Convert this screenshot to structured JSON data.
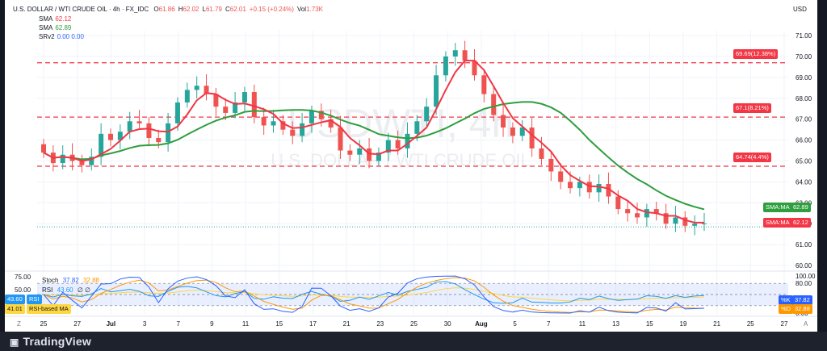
{
  "header": {
    "symbol_line": "U.S. DOLLAR / WTI CRUDE OIL · 4h · FX_IDC",
    "ohlc": [
      {
        "k": "O",
        "v": "61.86",
        "c": "#ef5350"
      },
      {
        "k": "H",
        "v": "62.02",
        "c": "#ef5350"
      },
      {
        "k": "L",
        "v": "61.79",
        "c": "#ef5350"
      },
      {
        "k": "C",
        "v": "62.01",
        "c": "#ef5350"
      },
      {
        "k": "",
        "v": "+0.15 (+0.24%)",
        "c": "#ef5350"
      },
      {
        "k": "Vol",
        "v": "1.73K",
        "c": "#ef5350"
      }
    ],
    "currency": "USD"
  },
  "indicators": [
    {
      "name": "SMA",
      "value": "62.12",
      "color": "#f23645"
    },
    {
      "name": "SMA",
      "value": "62.89",
      "color": "#2e9e3e"
    },
    {
      "name": "SRv2",
      "value": "0.00  0.00",
      "color": "#2962ff"
    }
  ],
  "watermark": {
    "ticker": "USDWTI, 4h",
    "name": "U.S. DOLLAR / WTI CRUDE OIL"
  },
  "colors": {
    "up": "#26a69a",
    "down": "#ef5350",
    "fast_ma": "#f23645",
    "slow_ma": "#2e9e3e",
    "level": "#f23645",
    "k": "#2962ff",
    "d": "#ff9800",
    "rsi": "#2196f3",
    "rsi_ma": "#ffd740"
  },
  "price_axis": {
    "ticks": [
      "71.00",
      "70.00",
      "69.00",
      "68.00",
      "67.00",
      "66.00",
      "65.00",
      "64.00",
      "63.00",
      "62.00",
      "61.00",
      "60.00"
    ]
  },
  "levels": [
    {
      "price": 69.7,
      "label": "69.69(12.38%)"
    },
    {
      "price": 67.1,
      "label": "67.1(8.21%)"
    },
    {
      "price": 64.75,
      "label": "64.74(4.4%)"
    }
  ],
  "price_tags": [
    {
      "text": "SMA:MA",
      "value": "62.89",
      "kind": "slow"
    },
    {
      "text": "SMA:MA",
      "value": "62.12",
      "kind": "fast"
    }
  ],
  "osc_legend": {
    "stoch_label": "Stoch",
    "stoch_k": "37.82",
    "stoch_d": "32.88",
    "rsi_label": "RSI",
    "rsi_value": "43.60",
    "rsi_extra": "∅ ∅"
  },
  "osc_axis": {
    "ticks": [
      "100.00",
      "80.00",
      "20.00",
      "0.00"
    ],
    "left_ticks": [
      "75.00",
      "50.00"
    ]
  },
  "osc_left_tags": [
    {
      "value": "43.60",
      "label": "RSI",
      "color": "#2196f3"
    },
    {
      "value": "41.01",
      "label": "RSI-based MA",
      "color": "#ffd740"
    }
  ],
  "osc_right_tags": [
    {
      "label": "%K",
      "value": "37.82",
      "color": "#2962ff"
    },
    {
      "label": "%D",
      "value": "32.88",
      "color": "#ff9800"
    }
  ],
  "time_axis": {
    "left_glyph": "Z",
    "right_glyph": "A",
    "labels": [
      "25",
      "27",
      "Jul",
      "3",
      "7",
      "9",
      "11",
      "15",
      "17",
      "21",
      "23",
      "25",
      "30",
      "Aug",
      "5",
      "7",
      "11",
      "13",
      "15",
      "19",
      "21",
      "25",
      "27"
    ]
  },
  "footer": {
    "brand": "TradingView"
  },
  "chart_data": {
    "type": "candlestick",
    "timeframe": "4h",
    "ylim": [
      60.0,
      71.5
    ],
    "close_path": [
      65.4,
      64.9,
      65.3,
      65.0,
      64.8,
      65.2,
      66.3,
      66.0,
      66.4,
      66.9,
      66.8,
      66.1,
      65.9,
      66.8,
      67.8,
      68.4,
      68.6,
      68.2,
      67.6,
      67.3,
      67.8,
      68.3,
      67.1,
      66.7,
      66.9,
      66.5,
      66.2,
      66.8,
      67.4,
      67.0,
      66.6,
      65.5,
      65.3,
      65.6,
      65.0,
      65.4,
      66.0,
      65.6,
      66.3,
      66.9,
      67.6,
      69.1,
      70.0,
      70.3,
      69.8,
      69.1,
      68.2,
      67.2,
      66.6,
      66.2,
      66.6,
      65.6,
      65.1,
      64.5,
      64.0,
      63.7,
      64.0,
      63.5,
      63.9,
      63.3,
      62.7,
      62.5,
      62.3,
      62.7,
      62.5,
      62.0,
      62.3,
      61.9,
      62.0,
      62.01
    ],
    "fast_sma_last": 62.12,
    "slow_sma_last": 62.89,
    "levels": [
      69.69,
      67.1,
      64.74
    ],
    "stoch": {
      "k": 37.82,
      "d": 32.88
    },
    "rsi": {
      "value": 43.6,
      "ma": 41.01
    }
  }
}
